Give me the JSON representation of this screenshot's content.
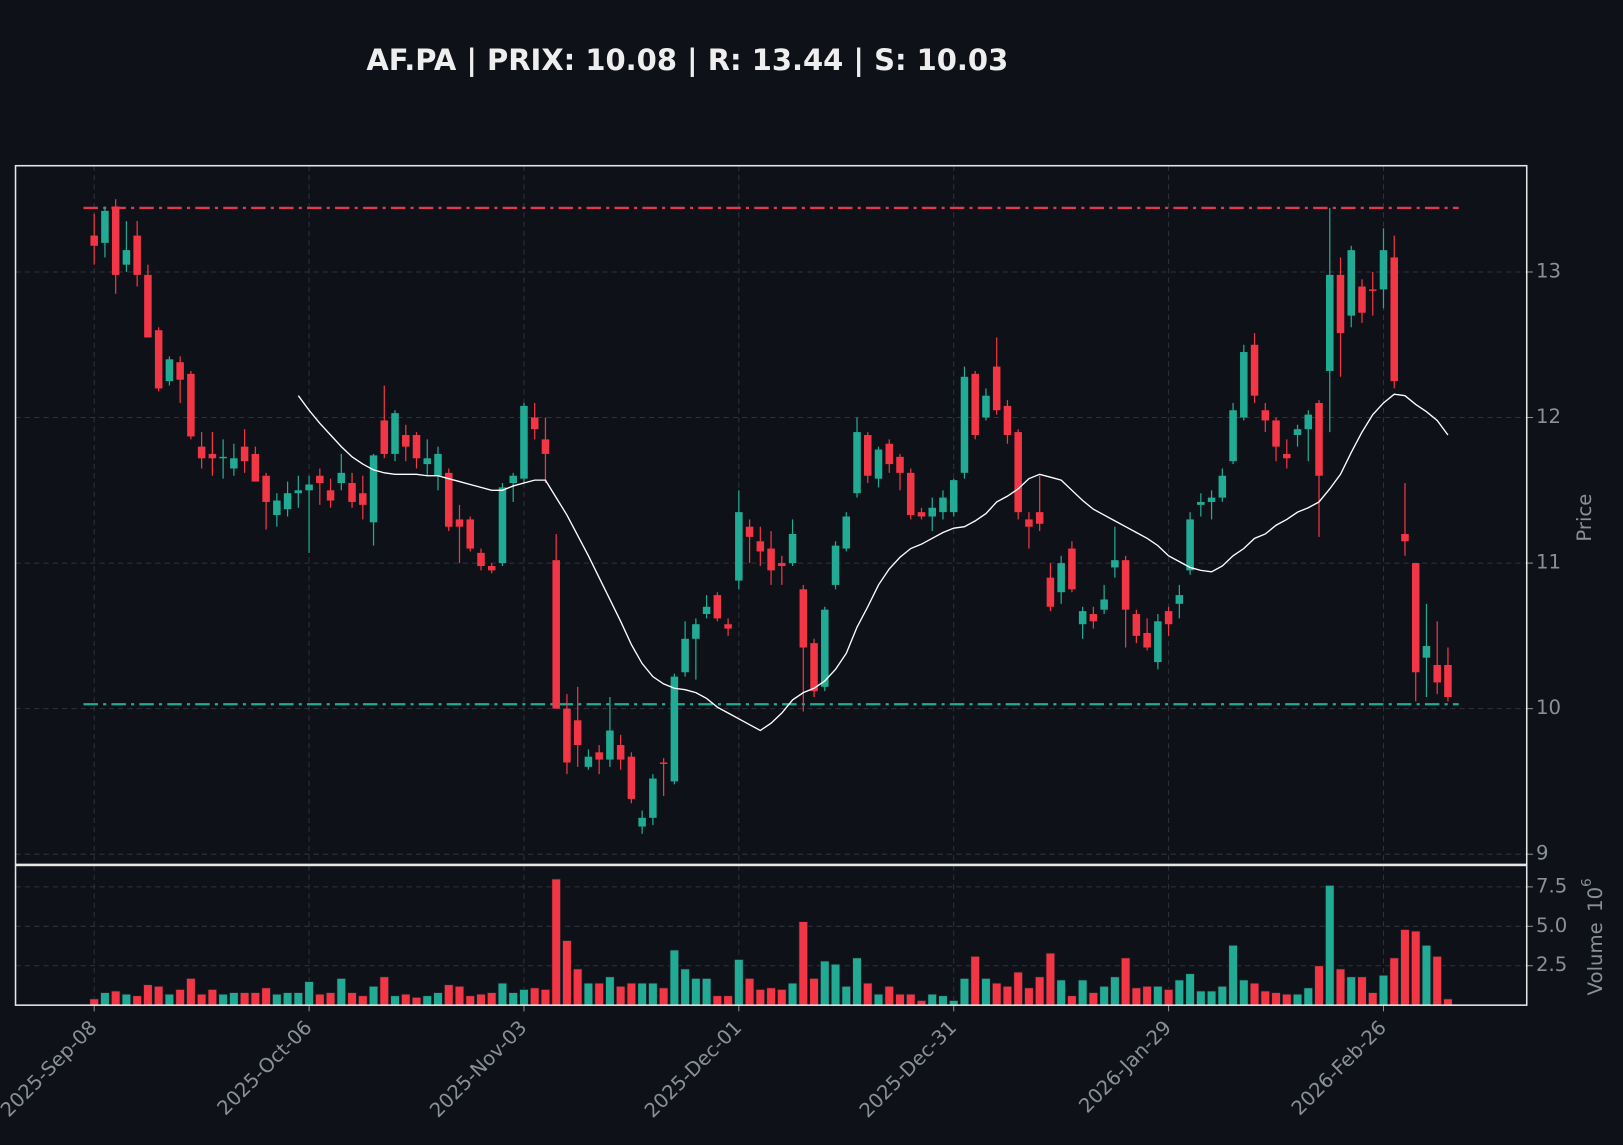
{
  "title": "AF.PA | PRIX: 10.08 | R: 13.44 | S: 10.03",
  "chart_data": [
    {
      "type": "candlestick",
      "y_label": "Price",
      "up_color": "#22ab94",
      "down_color": "#f23645",
      "categories": [
        "2025-Sep-08",
        null,
        null,
        null,
        null,
        null,
        null,
        null,
        null,
        null,
        null,
        null,
        null,
        null,
        null,
        null,
        null,
        null,
        null,
        null,
        "2025-Oct-06",
        null,
        null,
        null,
        null,
        null,
        null,
        null,
        null,
        null,
        null,
        null,
        null,
        null,
        null,
        null,
        null,
        null,
        null,
        null,
        "2025-Nov-03",
        null,
        null,
        null,
        null,
        null,
        null,
        null,
        null,
        null,
        null,
        null,
        null,
        null,
        null,
        null,
        null,
        null,
        null,
        null,
        "2025-Dec-01",
        null,
        null,
        null,
        null,
        null,
        null,
        null,
        null,
        null,
        null,
        null,
        null,
        null,
        null,
        null,
        null,
        null,
        null,
        null,
        "2025-Dec-31",
        null,
        null,
        null,
        null,
        null,
        null,
        null,
        null,
        null,
        null,
        null,
        null,
        null,
        null,
        null,
        null,
        null,
        null,
        null,
        "2026-Jan-29",
        null,
        null,
        null,
        null,
        null,
        null,
        null,
        null,
        null,
        null,
        null,
        null,
        null,
        null,
        null,
        null,
        null,
        null,
        null,
        "2026-Feb-26",
        null,
        null,
        null,
        null,
        null,
        null
      ],
      "open": [
        13.25,
        13.2,
        13.45,
        13.05,
        13.25,
        12.98,
        12.6,
        12.25,
        12.38,
        12.3,
        11.8,
        11.75,
        11.72,
        11.65,
        11.8,
        11.75,
        11.6,
        11.33,
        11.37,
        11.48,
        11.5,
        11.6,
        11.5,
        11.55,
        11.55,
        11.48,
        11.28,
        11.98,
        11.75,
        11.88,
        11.88,
        11.68,
        11.6,
        11.62,
        11.3,
        11.3,
        11.07,
        10.98,
        11.0,
        11.55,
        11.58,
        12.0,
        11.85,
        11.02,
        10.0,
        9.92,
        9.6,
        9.7,
        9.65,
        9.75,
        9.67,
        9.19,
        9.25,
        9.63,
        9.5,
        10.25,
        10.48,
        10.65,
        10.78,
        10.58,
        10.88,
        11.25,
        11.15,
        11.1,
        11.0,
        11.0,
        10.82,
        10.45,
        10.15,
        10.85,
        11.1,
        11.48,
        11.88,
        11.58,
        11.82,
        11.73,
        11.62,
        11.35,
        11.32,
        11.35,
        11.35,
        11.62,
        12.3,
        12.0,
        12.35,
        12.08,
        11.9,
        11.3,
        11.35,
        10.9,
        10.8,
        11.1,
        10.58,
        10.65,
        10.68,
        10.97,
        11.02,
        10.65,
        10.52,
        10.32,
        10.67,
        10.72,
        10.95,
        11.4,
        11.42,
        11.45,
        11.7,
        12.0,
        12.5,
        12.05,
        11.98,
        11.75,
        11.88,
        11.92,
        12.1,
        12.32,
        12.98,
        12.7,
        12.9,
        12.88,
        12.88,
        13.1,
        11.2,
        11.0,
        10.35,
        10.3,
        10.3
      ],
      "high": [
        13.4,
        13.45,
        13.5,
        13.35,
        13.35,
        13.05,
        12.62,
        12.42,
        12.42,
        12.32,
        11.9,
        11.9,
        11.85,
        11.82,
        11.92,
        11.8,
        11.62,
        11.48,
        11.56,
        11.6,
        11.6,
        11.65,
        11.58,
        11.75,
        11.62,
        11.6,
        11.75,
        12.22,
        12.05,
        11.95,
        11.9,
        11.85,
        11.8,
        11.65,
        11.4,
        11.32,
        11.1,
        11.0,
        11.55,
        11.62,
        12.1,
        12.1,
        12.0,
        11.2,
        10.1,
        10.15,
        9.72,
        9.75,
        10.08,
        9.82,
        9.7,
        9.3,
        9.55,
        9.66,
        10.24,
        10.6,
        10.62,
        10.78,
        10.8,
        10.62,
        11.5,
        11.3,
        11.25,
        11.22,
        11.05,
        11.3,
        10.85,
        10.48,
        10.7,
        11.15,
        11.35,
        12.0,
        11.9,
        11.8,
        11.85,
        11.75,
        11.65,
        11.38,
        11.45,
        11.5,
        11.58,
        12.35,
        12.32,
        12.2,
        12.55,
        12.12,
        11.92,
        11.35,
        11.6,
        11.0,
        11.05,
        11.15,
        10.7,
        10.7,
        10.85,
        11.25,
        11.05,
        10.68,
        10.62,
        10.65,
        10.7,
        10.85,
        11.35,
        11.48,
        11.5,
        11.65,
        12.1,
        12.5,
        12.58,
        12.1,
        12.0,
        11.85,
        11.95,
        12.05,
        12.12,
        13.44,
        13.1,
        13.18,
        12.95,
        13.0,
        13.3,
        13.25,
        11.55,
        11.0,
        10.72,
        10.6,
        10.42
      ],
      "low": [
        13.05,
        13.1,
        12.85,
        13.0,
        12.9,
        12.55,
        12.18,
        12.22,
        12.1,
        11.85,
        11.65,
        11.6,
        11.58,
        11.6,
        11.62,
        11.56,
        11.23,
        11.25,
        11.32,
        11.38,
        11.07,
        11.4,
        11.38,
        11.5,
        11.38,
        11.3,
        11.12,
        11.72,
        11.7,
        11.7,
        11.65,
        11.6,
        11.5,
        11.22,
        11.0,
        11.08,
        10.95,
        10.93,
        10.98,
        11.42,
        11.55,
        11.85,
        11.55,
        10.0,
        9.55,
        9.6,
        9.58,
        9.55,
        9.6,
        9.58,
        9.35,
        9.14,
        9.2,
        9.4,
        9.48,
        10.22,
        10.2,
        10.62,
        10.6,
        10.5,
        10.82,
        11.0,
        10.98,
        10.85,
        10.85,
        10.98,
        9.98,
        10.08,
        10.12,
        10.82,
        11.08,
        11.45,
        11.55,
        11.52,
        11.62,
        11.5,
        11.3,
        11.3,
        11.22,
        11.3,
        11.32,
        11.58,
        11.85,
        11.98,
        12.02,
        11.82,
        11.3,
        11.1,
        11.22,
        10.67,
        10.72,
        10.8,
        10.48,
        10.55,
        10.65,
        10.9,
        10.42,
        10.45,
        10.4,
        10.27,
        10.5,
        10.62,
        10.92,
        11.32,
        11.3,
        11.42,
        11.68,
        11.98,
        12.1,
        11.9,
        11.7,
        11.65,
        11.8,
        11.7,
        11.18,
        11.9,
        12.28,
        12.62,
        12.65,
        12.7,
        12.75,
        12.2,
        11.05,
        10.05,
        10.08,
        10.1,
        10.05
      ],
      "close": [
        13.18,
        13.42,
        12.98,
        13.15,
        12.98,
        12.55,
        12.2,
        12.4,
        12.26,
        11.87,
        11.72,
        11.72,
        11.73,
        11.72,
        11.7,
        11.56,
        11.42,
        11.43,
        11.48,
        11.5,
        11.54,
        11.55,
        11.43,
        11.62,
        11.42,
        11.4,
        11.74,
        11.75,
        12.03,
        11.8,
        11.72,
        11.72,
        11.75,
        11.25,
        11.25,
        11.1,
        10.98,
        10.95,
        11.52,
        11.6,
        12.08,
        11.92,
        11.75,
        10.0,
        9.63,
        9.75,
        9.67,
        9.65,
        9.85,
        9.65,
        9.38,
        9.25,
        9.52,
        9.62,
        10.22,
        10.48,
        10.58,
        10.7,
        10.62,
        10.55,
        11.35,
        11.18,
        11.08,
        10.95,
        10.98,
        11.2,
        10.42,
        10.12,
        10.68,
        11.12,
        11.32,
        11.9,
        11.6,
        11.78,
        11.68,
        11.62,
        11.33,
        11.32,
        11.38,
        11.45,
        11.57,
        12.28,
        11.88,
        12.15,
        12.05,
        11.88,
        11.35,
        11.25,
        11.27,
        10.7,
        11.0,
        10.82,
        10.67,
        10.6,
        10.75,
        11.02,
        10.68,
        10.5,
        10.42,
        10.6,
        10.58,
        10.78,
        11.3,
        11.42,
        11.45,
        11.6,
        12.05,
        12.45,
        12.15,
        11.98,
        11.8,
        11.72,
        11.92,
        12.02,
        11.6,
        12.98,
        12.58,
        13.15,
        12.72,
        12.87,
        13.15,
        12.25,
        11.15,
        10.25,
        10.43,
        10.18,
        10.08
      ],
      "lines": [
        {
          "color": "#ffffff",
          "values": [
            null,
            null,
            null,
            null,
            null,
            null,
            null,
            null,
            null,
            null,
            null,
            null,
            null,
            null,
            null,
            null,
            null,
            null,
            null,
            12.15,
            12.05,
            11.96,
            11.88,
            11.8,
            11.73,
            11.68,
            11.64,
            11.62,
            11.61,
            11.61,
            11.61,
            11.6,
            11.6,
            11.58,
            11.56,
            11.54,
            11.52,
            11.5,
            11.5,
            11.53,
            11.55,
            11.57,
            11.57,
            11.45,
            11.33,
            11.19,
            11.05,
            10.9,
            10.75,
            10.6,
            10.44,
            10.31,
            10.22,
            10.17,
            10.14,
            10.13,
            10.11,
            10.07,
            10.01,
            9.97,
            9.93,
            9.89,
            9.85,
            9.9,
            9.97,
            10.06,
            10.11,
            10.14,
            10.19,
            10.27,
            10.38,
            10.56,
            10.7,
            10.85,
            10.96,
            11.04,
            11.1,
            11.13,
            11.17,
            11.21,
            11.24,
            11.25,
            11.29,
            11.34,
            11.42,
            11.46,
            11.51,
            11.58,
            11.61,
            11.59,
            11.57,
            11.5,
            11.43,
            11.37,
            11.33,
            11.29,
            11.25,
            11.21,
            11.17,
            11.12,
            11.05,
            11.01,
            10.97,
            10.95,
            10.94,
            10.98,
            11.05,
            11.1,
            11.17,
            11.2,
            11.26,
            11.3,
            11.35,
            11.38,
            11.42,
            11.51,
            11.61,
            11.76,
            11.9,
            12.02,
            12.1,
            12.16,
            12.15,
            12.09,
            12.04,
            11.98,
            11.88
          ]
        }
      ],
      "hlines": [
        {
          "value": 13.44,
          "color": "#e0384f"
        },
        {
          "value": 10.03,
          "color": "#22ab94"
        }
      ],
      "ylim": [
        8.93,
        13.73
      ],
      "yticks": [
        9,
        10,
        11,
        12,
        13
      ],
      "grid": true
    },
    {
      "type": "bar",
      "y_label": "Volume",
      "y_offset_base": "10",
      "y_offset_exponent": "6",
      "values": [
        0.4,
        0.8,
        0.9,
        0.7,
        0.6,
        1.3,
        1.2,
        0.7,
        1.0,
        1.7,
        0.7,
        1.0,
        0.7,
        0.8,
        0.8,
        0.8,
        1.1,
        0.7,
        0.8,
        0.8,
        1.5,
        0.7,
        0.8,
        1.7,
        0.8,
        0.6,
        1.2,
        1.8,
        0.6,
        0.7,
        0.5,
        0.6,
        0.8,
        1.3,
        1.2,
        0.6,
        0.7,
        0.8,
        1.4,
        0.8,
        1.0,
        1.1,
        1.0,
        8.0,
        4.1,
        2.3,
        1.4,
        1.4,
        1.8,
        1.2,
        1.4,
        1.4,
        1.4,
        1.1,
        3.5,
        2.3,
        1.7,
        1.7,
        0.6,
        0.6,
        2.9,
        1.7,
        1.0,
        1.1,
        1.0,
        1.4,
        5.3,
        1.7,
        2.8,
        2.6,
        1.2,
        3.0,
        1.4,
        0.7,
        1.2,
        0.7,
        0.7,
        0.3,
        0.7,
        0.6,
        0.3,
        1.7,
        3.1,
        1.7,
        1.4,
        1.2,
        2.1,
        1.1,
        1.8,
        3.3,
        1.6,
        0.6,
        1.6,
        0.8,
        1.2,
        1.8,
        3.0,
        1.1,
        1.2,
        1.2,
        1.0,
        1.6,
        2.0,
        0.9,
        0.9,
        1.2,
        3.8,
        1.6,
        1.4,
        0.9,
        0.8,
        0.7,
        0.7,
        1.1,
        2.5,
        7.6,
        2.3,
        1.8,
        1.8,
        0.8,
        1.9,
        3.0,
        4.8,
        4.7,
        3.8,
        3.1,
        0.4
      ],
      "ylim": [
        0,
        8.86
      ],
      "yticks": [
        2.5,
        {
          "value": 5,
          "label": "5.0"
        },
        7.5
      ],
      "grid": true
    }
  ]
}
